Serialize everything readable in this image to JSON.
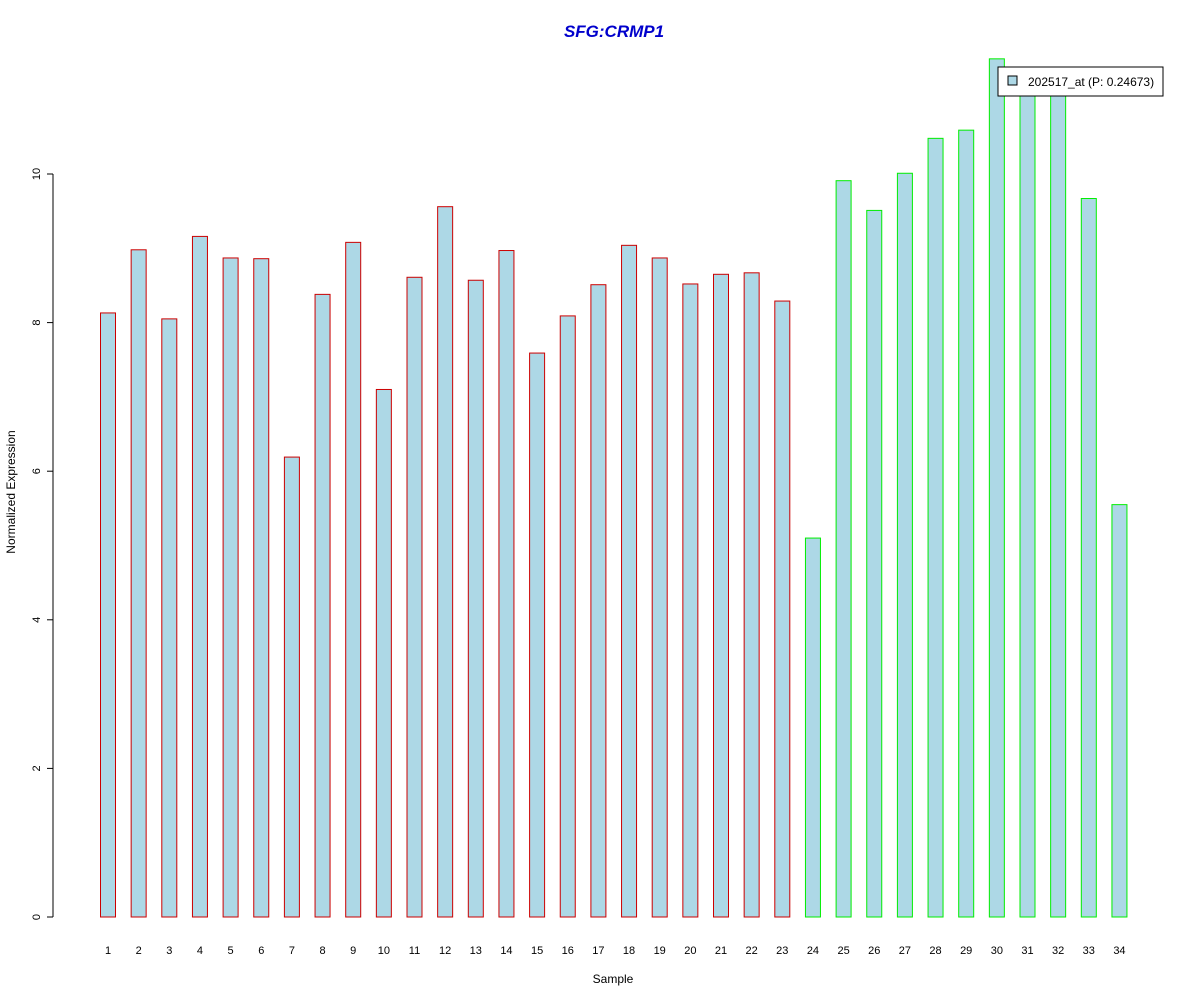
{
  "chart_data": {
    "type": "bar",
    "title": "SFG:CRMP1",
    "xlabel": "Sample",
    "ylabel": "Normalized Expression",
    "ylim": [
      0,
      12
    ],
    "yticks": [
      0,
      2,
      4,
      6,
      8,
      10
    ],
    "categories": [
      "1",
      "2",
      "3",
      "4",
      "5",
      "6",
      "7",
      "8",
      "9",
      "10",
      "11",
      "12",
      "13",
      "14",
      "15",
      "16",
      "17",
      "18",
      "19",
      "20",
      "21",
      "22",
      "23",
      "24",
      "25",
      "26",
      "27",
      "28",
      "29",
      "30",
      "31",
      "32",
      "33",
      "34"
    ],
    "series": [
      {
        "name": "202517_at (P: 0.24673)",
        "values": [
          8.13,
          8.98,
          8.05,
          9.16,
          8.87,
          8.86,
          6.19,
          8.38,
          9.08,
          7.1,
          8.61,
          9.56,
          8.57,
          8.97,
          7.59,
          8.09,
          8.51,
          9.04,
          8.87,
          8.52,
          8.65,
          8.67,
          8.29,
          5.1,
          9.91,
          9.51,
          10.01,
          10.48,
          10.59,
          11.55,
          11.1,
          11.1,
          9.67,
          5.55
        ]
      }
    ],
    "groups": [
      {
        "samples": "1-23",
        "border_color": "#cc0000"
      },
      {
        "samples": "24-34",
        "border_color": "#00ee00"
      }
    ],
    "bar_fill": "#add8e6",
    "title_color": "#0000cc",
    "legend_position": "top-right",
    "grid": false
  }
}
